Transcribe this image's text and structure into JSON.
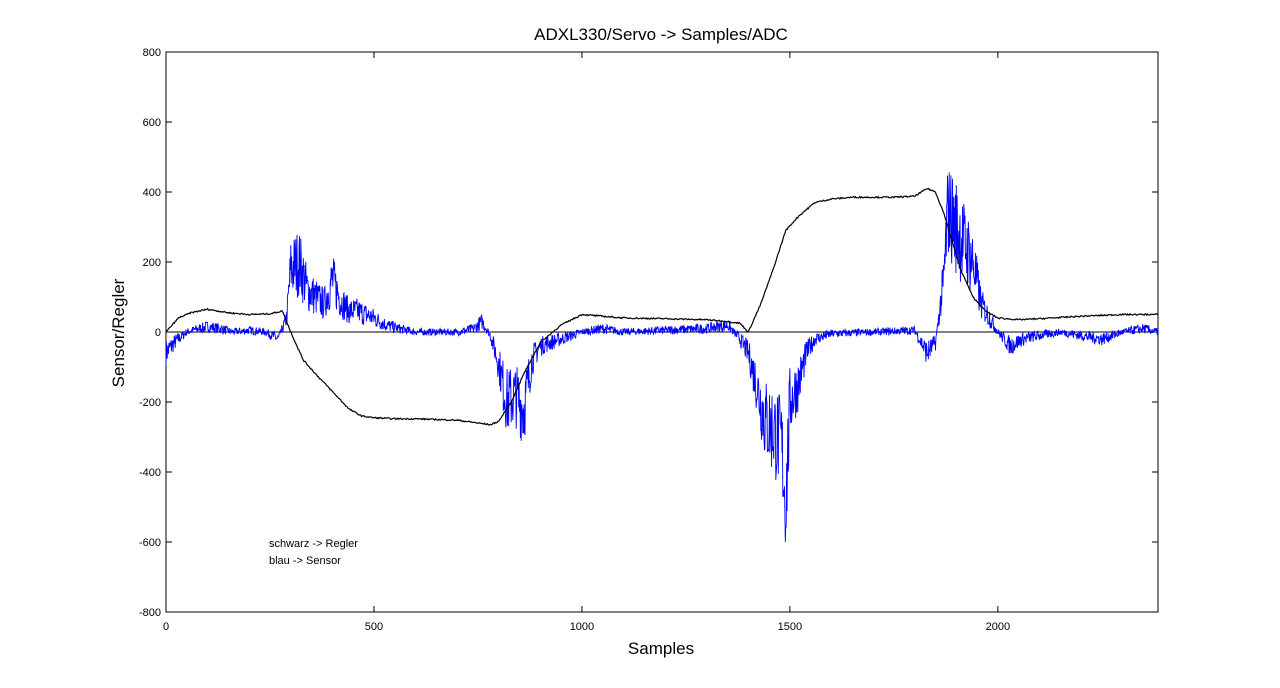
{
  "chart_data": {
    "type": "line",
    "title": "ADXL330/Servo -> Samples/ADC",
    "xlabel": "Samples",
    "ylabel": "Sensor/Regler",
    "xlim": [
      0,
      2385
    ],
    "ylim": [
      -800,
      800
    ],
    "xticks": [
      0,
      500,
      1000,
      1500,
      2000
    ],
    "yticks": [
      -800,
      -600,
      -400,
      -200,
      0,
      200,
      400,
      600,
      800
    ],
    "zero_line": true,
    "grid": false,
    "annotations": [
      "schwarz -> Regler",
      "blau -> Sensor"
    ],
    "colors": {
      "regler": "#000000",
      "sensor": "#0000ff"
    },
    "series": [
      {
        "key": "regler",
        "color": "#000000",
        "x": [
          0,
          30,
          60,
          100,
          150,
          200,
          250,
          280,
          300,
          330,
          360,
          400,
          440,
          470,
          500,
          550,
          600,
          650,
          700,
          750,
          780,
          800,
          830,
          860,
          900,
          950,
          1000,
          1050,
          1100,
          1200,
          1300,
          1350,
          1380,
          1400,
          1430,
          1460,
          1490,
          1520,
          1560,
          1600,
          1650,
          1700,
          1750,
          1800,
          1830,
          1850,
          1870,
          1890,
          1910,
          1940,
          1970,
          2000,
          2050,
          2100,
          2200,
          2300,
          2385
        ],
        "y": [
          0,
          40,
          55,
          65,
          55,
          50,
          52,
          60,
          0,
          -80,
          -120,
          -170,
          -220,
          -240,
          -245,
          -248,
          -248,
          -250,
          -252,
          -260,
          -265,
          -255,
          -200,
          -120,
          -30,
          20,
          50,
          45,
          40,
          38,
          35,
          30,
          25,
          0,
          80,
          180,
          290,
          330,
          370,
          380,
          385,
          385,
          385,
          388,
          410,
          400,
          340,
          260,
          180,
          100,
          60,
          40,
          35,
          38,
          45,
          50,
          50
        ]
      },
      {
        "key": "sensor",
        "color": "#0000ff",
        "noisy": true,
        "x": [
          0,
          20,
          50,
          80,
          100,
          130,
          160,
          200,
          240,
          270,
          290,
          300,
          320,
          340,
          360,
          380,
          400,
          420,
          440,
          460,
          500,
          530,
          560,
          600,
          650,
          700,
          740,
          760,
          780,
          800,
          810,
          820,
          840,
          860,
          880,
          900,
          950,
          1000,
          1050,
          1100,
          1200,
          1300,
          1350,
          1380,
          1400,
          1420,
          1440,
          1460,
          1480,
          1490,
          1500,
          1520,
          1540,
          1560,
          1600,
          1700,
          1800,
          1830,
          1850,
          1870,
          1880,
          1900,
          1920,
          1940,
          1960,
          1980,
          2000,
          2030,
          2060,
          2100,
          2150,
          2200,
          2250,
          2300,
          2350,
          2385
        ],
        "y": [
          -60,
          -30,
          0,
          10,
          15,
          10,
          0,
          5,
          0,
          -20,
          40,
          180,
          200,
          120,
          100,
          80,
          150,
          90,
          60,
          60,
          40,
          20,
          10,
          0,
          0,
          0,
          10,
          30,
          -10,
          -90,
          -150,
          -200,
          -180,
          -220,
          -80,
          -40,
          -20,
          0,
          10,
          0,
          5,
          10,
          20,
          -20,
          -60,
          -150,
          -250,
          -280,
          -320,
          -500,
          -200,
          -150,
          -60,
          -20,
          -5,
          0,
          5,
          -60,
          -30,
          150,
          350,
          300,
          250,
          200,
          80,
          40,
          0,
          -40,
          -20,
          -10,
          0,
          -10,
          -20,
          0,
          10,
          0
        ]
      }
    ]
  }
}
